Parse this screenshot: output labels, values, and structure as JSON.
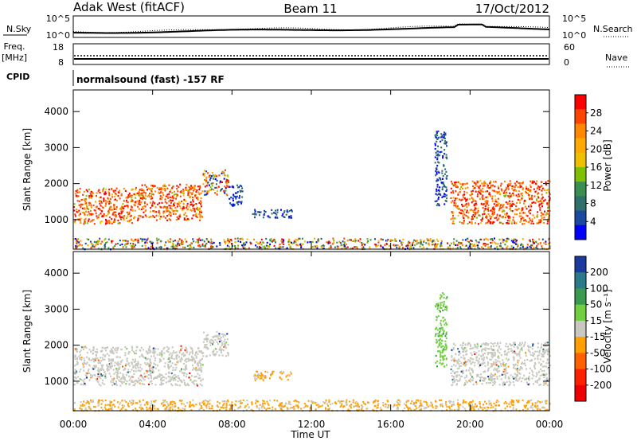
{
  "header": {
    "station": "Adak West (fitACF)",
    "beam": "Beam 11",
    "date": "17/Oct/2012"
  },
  "strip_panels": {
    "nsky_label": "N.Sky",
    "nsearch_label": "N.Search",
    "nsky_ticks": [
      "10^5",
      "10^0"
    ],
    "nsearch_ticks": [
      "10^5",
      "10^0"
    ],
    "freq_label_1": "Freq.",
    "freq_label_2": "[MHz]",
    "freq_ticks": [
      "18",
      "8"
    ],
    "nave_label": "Nave",
    "nave_ticks": [
      "60",
      "0"
    ],
    "cpid_label": "CPID",
    "cpid_text": "normalsound (fast) -157 RF"
  },
  "chart_data": [
    {
      "type": "heatmap",
      "title": "",
      "xlabel": "Time UT",
      "ylabel": "Slant Range [km]",
      "x_ticks": [
        "00:00",
        "04:00",
        "08:00",
        "12:00",
        "16:00",
        "20:00",
        "00:00"
      ],
      "y_ticks": [
        "1000",
        "2000",
        "3000",
        "4000"
      ],
      "xlim_hours": [
        0,
        24
      ],
      "ylim_km": [
        180,
        4600
      ],
      "colorbar_label": "Power [dB]",
      "colorbar_ticks": [
        "28",
        "24",
        "20",
        "16",
        "12",
        "8",
        "4"
      ],
      "colorbar_colors": [
        "#ff0000",
        "#ff4400",
        "#ff8800",
        "#ffaa00",
        "#f0c000",
        "#7fc000",
        "#3a8f50",
        "#30706a",
        "#1a4aa0",
        "#0000ff"
      ],
      "echo_regions": [
        {
          "t0": 0.0,
          "t1": 3.0,
          "r0": 900,
          "r1": 1900,
          "level": "high"
        },
        {
          "t0": 3.0,
          "t1": 6.5,
          "r0": 1000,
          "r1": 2000,
          "level": "high"
        },
        {
          "t0": 6.5,
          "t1": 7.8,
          "r0": 1700,
          "r1": 2400,
          "level": "mixed"
        },
        {
          "t0": 7.8,
          "t1": 8.5,
          "r0": 1400,
          "r1": 2000,
          "level": "low"
        },
        {
          "t0": 9.0,
          "t1": 11.0,
          "r0": 1050,
          "r1": 1300,
          "level": "low"
        },
        {
          "t0": 0.0,
          "t1": 24.0,
          "r0": 200,
          "r1": 500,
          "level": "mixed"
        },
        {
          "t0": 18.2,
          "t1": 18.8,
          "r0": 1400,
          "r1": 3500,
          "level": "low"
        },
        {
          "t0": 19.0,
          "t1": 24.0,
          "r0": 900,
          "r1": 2100,
          "level": "high"
        }
      ]
    },
    {
      "type": "heatmap",
      "title": "",
      "xlabel": "Time UT",
      "ylabel": "Slant Range [km]",
      "x_ticks": [
        "00:00",
        "04:00",
        "08:00",
        "12:00",
        "16:00",
        "20:00",
        "00:00"
      ],
      "y_ticks": [
        "1000",
        "2000",
        "3000",
        "4000"
      ],
      "xlim_hours": [
        0,
        24
      ],
      "ylim_km": [
        180,
        4600
      ],
      "colorbar_label": "Velocity [m s⁻¹]",
      "colorbar_ticks": [
        "200",
        "100",
        "50",
        "15",
        "-15",
        "-50",
        "-100",
        "-200"
      ],
      "colorbar_colors": [
        "#1a3aa0",
        "#2a7a8a",
        "#3a9a50",
        "#70d040",
        "#c8c8c0",
        "#ffa000",
        "#ff6000",
        "#ff2000",
        "#ee0000"
      ],
      "echo_regions": [
        {
          "t0": 0.0,
          "t1": 6.5,
          "r0": 900,
          "r1": 2000,
          "level": "grey"
        },
        {
          "t0": 6.5,
          "t1": 7.8,
          "r0": 1700,
          "r1": 2400,
          "level": "grey"
        },
        {
          "t0": 9.0,
          "t1": 11.0,
          "r0": 1050,
          "r1": 1300,
          "level": "orange"
        },
        {
          "t0": 0.0,
          "t1": 24.0,
          "r0": 200,
          "r1": 500,
          "level": "orange"
        },
        {
          "t0": 18.2,
          "t1": 18.8,
          "r0": 1400,
          "r1": 3500,
          "level": "green"
        },
        {
          "t0": 19.0,
          "t1": 24.0,
          "r0": 900,
          "r1": 2100,
          "level": "grey"
        }
      ]
    }
  ]
}
